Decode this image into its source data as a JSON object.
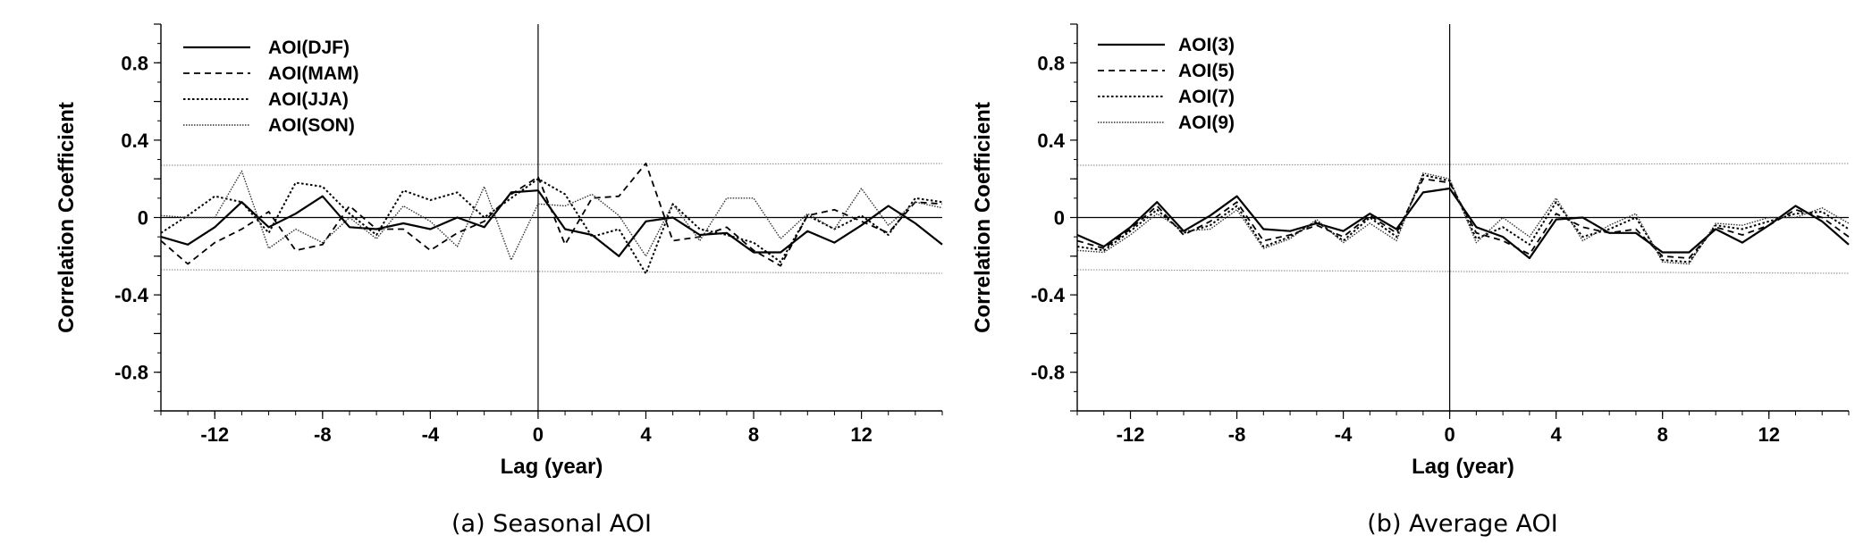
{
  "chart_data": [
    {
      "type": "line",
      "caption": "(a) Seasonal AOI",
      "xlabel": "Lag (year)",
      "ylabel": "Correlation Coefficient",
      "xlim": [
        -14,
        15
      ],
      "ylim": [
        -1,
        1
      ],
      "xticks": [
        -12,
        -8,
        -4,
        0,
        4,
        8,
        12
      ],
      "xtick_labels": [
        "-12",
        "-8",
        "-4",
        "0",
        "4",
        "8",
        "12"
      ],
      "yticks": [
        0.8,
        0.4,
        0,
        -0.4,
        -0.8
      ],
      "ytick_labels": [
        "0.8",
        "0.4",
        "0",
        "-0.4",
        "-0.8"
      ],
      "legend_position": "top-left",
      "significance_band": [
        0.27,
        -0.27
      ],
      "x": [
        -14,
        -13,
        -12,
        -11,
        -10,
        -9,
        -8,
        -7,
        -6,
        -5,
        -4,
        -3,
        -2,
        -1,
        0,
        1,
        2,
        3,
        4,
        5,
        6,
        7,
        8,
        9,
        10,
        11,
        12,
        13,
        14,
        15
      ],
      "series": [
        {
          "name": "AOI(DJF)",
          "dash": "solid",
          "values": [
            -0.1,
            -0.14,
            -0.05,
            0.08,
            -0.05,
            0.02,
            0.11,
            -0.05,
            -0.06,
            -0.03,
            -0.06,
            0,
            -0.05,
            0.13,
            0.14,
            -0.06,
            -0.09,
            -0.2,
            -0.02,
            0,
            -0.09,
            -0.08,
            -0.18,
            -0.18,
            -0.07,
            -0.13,
            -0.04,
            0.06,
            -0.03,
            -0.14
          ]
        },
        {
          "name": "AOI(MAM)",
          "dash": "dashed",
          "values": [
            -0.12,
            -0.24,
            -0.13,
            -0.06,
            0.03,
            -0.17,
            -0.14,
            0.06,
            -0.06,
            -0.06,
            -0.17,
            -0.08,
            -0.02,
            0.12,
            0.21,
            -0.14,
            0.1,
            0.11,
            0.28,
            -0.12,
            -0.1,
            -0.05,
            -0.17,
            -0.25,
            0.01,
            0.04,
            -0.02,
            -0.08,
            0.08,
            0.07
          ]
        },
        {
          "name": "AOI(JJA)",
          "dash": "dotted",
          "values": [
            -0.08,
            0.01,
            0.11,
            0.08,
            -0.08,
            0.18,
            0.16,
            0.02,
            -0.09,
            0.14,
            0.09,
            0.13,
            0,
            0.1,
            0.2,
            0.12,
            -0.1,
            -0.06,
            -0.29,
            0.07,
            -0.06,
            -0.09,
            -0.13,
            -0.23,
            0.01,
            -0.06,
            0.01,
            -0.09,
            0.1,
            0.08
          ]
        },
        {
          "name": "AOI(SON)",
          "dash": "fine-dotted",
          "values": [
            0.01,
            0,
            0,
            0.24,
            -0.16,
            -0.06,
            -0.13,
            0,
            -0.11,
            0.06,
            -0.02,
            -0.15,
            0.16,
            -0.22,
            0.07,
            0.06,
            0.12,
            0.01,
            -0.2,
            0.07,
            -0.12,
            0.1,
            0.1,
            -0.11,
            0.02,
            -0.06,
            0.15,
            -0.04,
            0.08,
            0.05
          ]
        }
      ]
    },
    {
      "type": "line",
      "caption": "(b) Average AOI",
      "xlabel": "Lag (year)",
      "ylabel": "Correlation Coefficient",
      "xlim": [
        -14,
        15
      ],
      "ylim": [
        -1,
        1
      ],
      "xticks": [
        -12,
        -8,
        -4,
        0,
        4,
        8,
        12
      ],
      "xtick_labels": [
        "-12",
        "-8",
        "-4",
        "0",
        "4",
        "8",
        "12"
      ],
      "yticks": [
        0.8,
        0.4,
        0,
        -0.4,
        -0.8
      ],
      "ytick_labels": [
        "0.8",
        "0.4",
        "0",
        "-0.4",
        "-0.8"
      ],
      "legend_position": "top-left",
      "significance_band": [
        0.27,
        -0.27
      ],
      "x": [
        -14,
        -13,
        -12,
        -11,
        -10,
        -9,
        -8,
        -7,
        -6,
        -5,
        -4,
        -3,
        -2,
        -1,
        0,
        1,
        2,
        3,
        4,
        5,
        6,
        7,
        8,
        9,
        10,
        11,
        12,
        13,
        14,
        15
      ],
      "series": [
        {
          "name": "AOI(3)",
          "dash": "solid",
          "values": [
            -0.09,
            -0.15,
            -0.05,
            0.08,
            -0.07,
            0.01,
            0.11,
            -0.06,
            -0.07,
            -0.03,
            -0.07,
            0.02,
            -0.06,
            0.13,
            0.15,
            -0.05,
            -0.1,
            -0.21,
            -0.01,
            0,
            -0.08,
            -0.08,
            -0.18,
            -0.18,
            -0.06,
            -0.13,
            -0.04,
            0.06,
            -0.02,
            -0.14
          ]
        },
        {
          "name": "AOI(5)",
          "dash": "dashed",
          "values": [
            -0.12,
            -0.16,
            -0.06,
            0.06,
            -0.09,
            -0.02,
            0.08,
            -0.12,
            -0.09,
            -0.04,
            -0.1,
            0.01,
            -0.08,
            0.2,
            0.18,
            -0.08,
            -0.12,
            -0.19,
            0.02,
            -0.05,
            -0.08,
            -0.06,
            -0.2,
            -0.21,
            -0.05,
            -0.09,
            -0.04,
            0.04,
            0,
            -0.1
          ]
        },
        {
          "name": "AOI(7)",
          "dash": "dotted",
          "values": [
            -0.15,
            -0.17,
            -0.07,
            0.04,
            -0.08,
            -0.04,
            0.06,
            -0.15,
            -0.1,
            -0.02,
            -0.12,
            0,
            -0.1,
            0.22,
            0.19,
            -0.11,
            -0.05,
            -0.14,
            0.08,
            -0.1,
            -0.06,
            0,
            -0.22,
            -0.23,
            -0.04,
            -0.06,
            -0.02,
            0.02,
            0.03,
            -0.06
          ]
        },
        {
          "name": "AOI(9)",
          "dash": "fine-dotted",
          "values": [
            -0.17,
            -0.18,
            -0.09,
            0.02,
            -0.07,
            -0.06,
            0.04,
            -0.16,
            -0.11,
            -0.01,
            -0.13,
            -0.03,
            -0.12,
            0.23,
            0.2,
            -0.13,
            0,
            -0.1,
            0.1,
            -0.12,
            -0.04,
            0.02,
            -0.23,
            -0.24,
            -0.03,
            -0.04,
            0,
            0,
            0.05,
            -0.03
          ]
        }
      ]
    }
  ]
}
